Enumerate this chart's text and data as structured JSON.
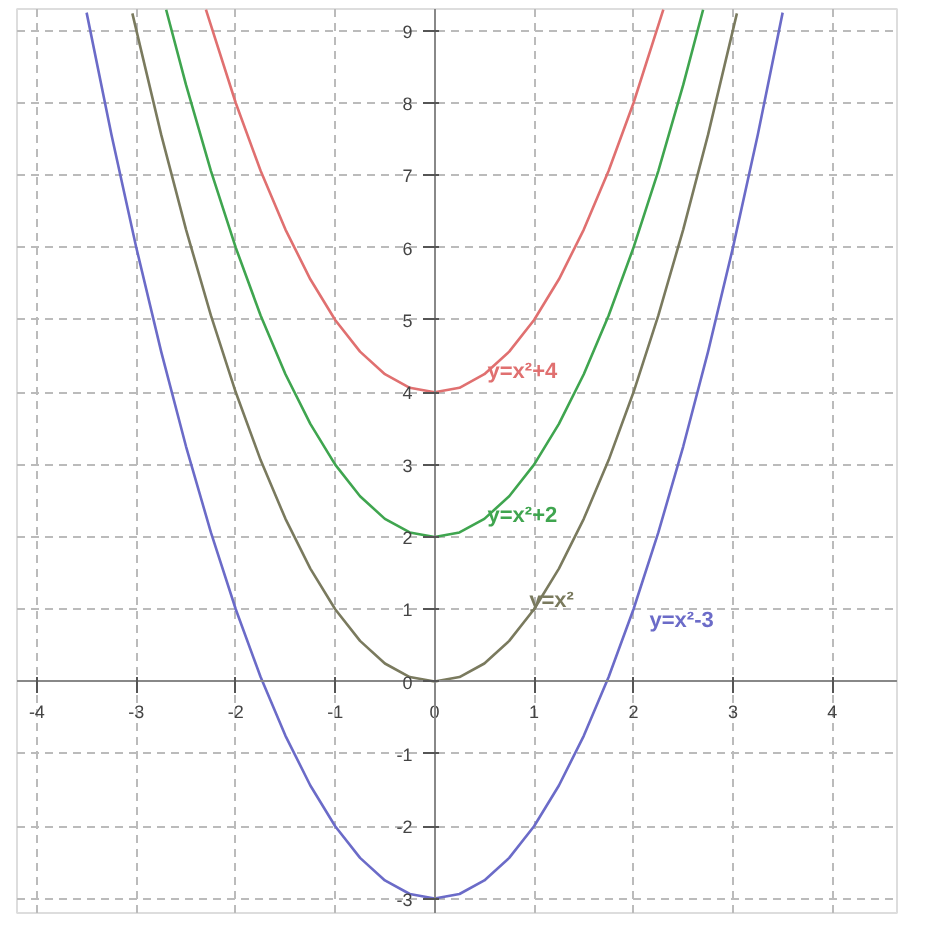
{
  "chart_data": {
    "type": "line",
    "xlim": [
      -4.2,
      4.65
    ],
    "ylim": [
      -3.2,
      9.3
    ],
    "xticks": [
      -4,
      -3,
      -2,
      -1,
      0,
      1,
      2,
      3,
      4
    ],
    "yticks": [
      -3,
      -2,
      -1,
      0,
      1,
      2,
      3,
      4,
      5,
      6,
      7,
      8,
      9
    ],
    "grid": true,
    "line_style": "solid",
    "marker": "none",
    "series": [
      {
        "name": "y=x²+4",
        "color": "#e07070",
        "x": [
          -2.3,
          -2,
          -1.75,
          -1.5,
          -1.25,
          -1,
          -0.75,
          -0.5,
          -0.25,
          0,
          0.25,
          0.5,
          0.75,
          1,
          1.25,
          1.5,
          1.75,
          2,
          2.3
        ],
        "values": [
          9.29,
          8,
          7.0625,
          6.25,
          5.5625,
          5,
          4.5625,
          4.25,
          4.0625,
          4,
          4.0625,
          4.25,
          4.5625,
          5,
          5.5625,
          6.25,
          7.0625,
          8,
          9.29
        ]
      },
      {
        "name": "y=x²+2",
        "color": "#3fa54f",
        "x": [
          -2.7,
          -2.5,
          -2.25,
          -2,
          -1.75,
          -1.5,
          -1.25,
          -1,
          -0.75,
          -0.5,
          -0.25,
          0,
          0.25,
          0.5,
          0.75,
          1,
          1.25,
          1.5,
          1.75,
          2,
          2.25,
          2.5,
          2.7
        ],
        "values": [
          9.29,
          8.25,
          7.0625,
          6,
          5.0625,
          4.25,
          3.5625,
          3,
          2.5625,
          2.25,
          2.0625,
          2,
          2.0625,
          2.25,
          2.5625,
          3,
          3.5625,
          4.25,
          5.0625,
          6,
          7.0625,
          8.25,
          9.29
        ]
      },
      {
        "name": "y=x²",
        "color": "#7a7a5e",
        "x": [
          -3.04,
          -2.75,
          -2.5,
          -2.25,
          -2,
          -1.75,
          -1.5,
          -1.25,
          -1,
          -0.75,
          -0.5,
          -0.25,
          0,
          0.25,
          0.5,
          0.75,
          1,
          1.25,
          1.5,
          1.75,
          2,
          2.25,
          2.5,
          2.75,
          3.04
        ],
        "values": [
          9.24,
          7.5625,
          6.25,
          5.0625,
          4,
          3.0625,
          2.25,
          1.5625,
          1,
          0.5625,
          0.25,
          0.0625,
          0,
          0.0625,
          0.25,
          0.5625,
          1,
          1.5625,
          2.25,
          3.0625,
          4,
          5.0625,
          6.25,
          7.5625,
          9.24
        ]
      },
      {
        "name": "y=x²-3",
        "color": "#6b6bc8",
        "x": [
          -3.5,
          -3.25,
          -3,
          -2.75,
          -2.5,
          -2.25,
          -2,
          -1.75,
          -1.5,
          -1.25,
          -1,
          -0.75,
          -0.5,
          -0.25,
          0,
          0.25,
          0.5,
          0.75,
          1,
          1.25,
          1.5,
          1.75,
          2,
          2.25,
          2.5,
          2.75,
          3,
          3.25,
          3.5
        ],
        "values": [
          9.25,
          7.5625,
          6,
          4.5625,
          3.25,
          2.0625,
          1,
          0.0625,
          -0.75,
          -1.4375,
          -2,
          -2.4375,
          -2.75,
          -2.9375,
          -3,
          -2.9375,
          -2.75,
          -2.4375,
          -2,
          -1.4375,
          -0.75,
          0.0625,
          1,
          2.0625,
          3.25,
          4.5625,
          6,
          7.5625,
          9.25
        ]
      }
    ]
  }
}
